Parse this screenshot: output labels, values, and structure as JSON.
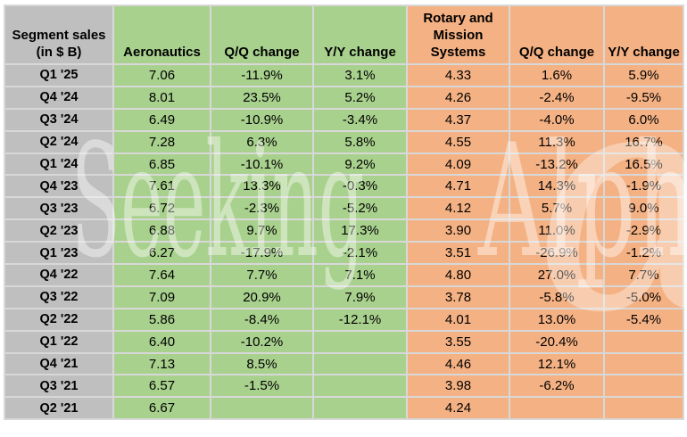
{
  "watermark": {
    "word1": "Seeking",
    "word2": "Alpha",
    "logo_glyph": "α"
  },
  "colors": {
    "label_gray": "#bfbfbf",
    "aeronautics_green": "#a9d18e",
    "rotary_orange": "#f4b183",
    "gridline": "#d8d8d8",
    "text": "#000000"
  },
  "table": {
    "columns": [
      {
        "label": "Segment sales (in $ B)",
        "group": "label"
      },
      {
        "label": "Aeronautics",
        "group": "green"
      },
      {
        "label": "Q/Q change",
        "group": "green"
      },
      {
        "label": "Y/Y change",
        "group": "green"
      },
      {
        "label": "Rotary and Mission Systems",
        "group": "orange"
      },
      {
        "label": "Q/Q change",
        "group": "orange"
      },
      {
        "label": "Y/Y change",
        "group": "orange"
      }
    ],
    "rows": [
      {
        "label": "Q1 '25",
        "values": [
          "7.06",
          "-11.9%",
          "3.1%",
          "4.33",
          "1.6%",
          "5.9%"
        ]
      },
      {
        "label": "Q4 '24",
        "values": [
          "8.01",
          "23.5%",
          "5.2%",
          "4.26",
          "-2.4%",
          "-9.5%"
        ]
      },
      {
        "label": "Q3 '24",
        "values": [
          "6.49",
          "-10.9%",
          "-3.4%",
          "4.37",
          "-4.0%",
          "6.0%"
        ]
      },
      {
        "label": "Q2 '24",
        "values": [
          "7.28",
          "6.3%",
          "5.8%",
          "4.55",
          "11.3%",
          "16.7%"
        ]
      },
      {
        "label": "Q1 '24",
        "values": [
          "6.85",
          "-10.1%",
          "9.2%",
          "4.09",
          "-13.2%",
          "16.5%"
        ]
      },
      {
        "label": "Q4 '23",
        "values": [
          "7.61",
          "13.3%",
          "-0.3%",
          "4.71",
          "14.3%",
          "-1.9%"
        ]
      },
      {
        "label": "Q3 '23",
        "values": [
          "6.72",
          "-2.3%",
          "-5.2%",
          "4.12",
          "5.7%",
          "9.0%"
        ]
      },
      {
        "label": "Q2 '23",
        "values": [
          "6.88",
          "9.7%",
          "17.3%",
          "3.90",
          "11.0%",
          "-2.9%"
        ]
      },
      {
        "label": "Q1 '23",
        "values": [
          "6.27",
          "-17.9%",
          "-2.1%",
          "3.51",
          "-26.9%",
          "-1.2%"
        ]
      },
      {
        "label": "Q4 '22",
        "values": [
          "7.64",
          "7.7%",
          "7.1%",
          "4.80",
          "27.0%",
          "7.7%"
        ]
      },
      {
        "label": "Q3 '22",
        "values": [
          "7.09",
          "20.9%",
          "7.9%",
          "3.78",
          "-5.8%",
          "-5.0%"
        ]
      },
      {
        "label": "Q2 '22",
        "values": [
          "5.86",
          "-8.4%",
          "-12.1%",
          "4.01",
          "13.0%",
          "-5.4%"
        ]
      },
      {
        "label": "Q1 '22",
        "values": [
          "6.40",
          "-10.2%",
          "",
          "3.55",
          "-20.4%",
          ""
        ]
      },
      {
        "label": "Q4 '21",
        "values": [
          "7.13",
          "8.5%",
          "",
          "4.46",
          "12.1%",
          ""
        ]
      },
      {
        "label": "Q3 '21",
        "values": [
          "6.57",
          "-1.5%",
          "",
          "3.98",
          "-6.2%",
          ""
        ]
      },
      {
        "label": "Q2 '21",
        "values": [
          "6.67",
          "",
          "",
          "4.24",
          "",
          ""
        ]
      }
    ]
  }
}
